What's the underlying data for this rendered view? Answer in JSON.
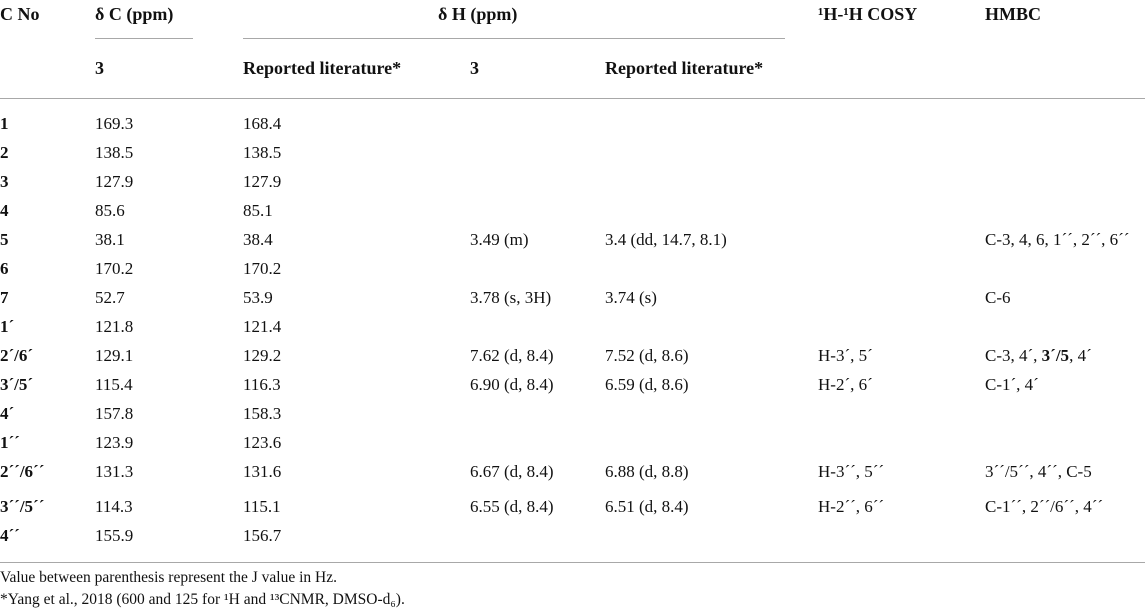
{
  "table": {
    "headers": {
      "c_no": "C No",
      "delta_c": "δ C (ppm)",
      "delta_h": "δ H (ppm)",
      "cosy": "¹H-¹H COSY",
      "hmbc": "HMBC",
      "sub_c_3": "3",
      "sub_c_lit": "Reported literature*",
      "sub_h_3": "3",
      "sub_h_lit": "Reported literature*"
    },
    "rows": [
      {
        "c_no": "1",
        "dc": "169.3",
        "dc_lit": "168.4"
      },
      {
        "c_no": "2",
        "dc": "138.5",
        "dc_lit": "138.5"
      },
      {
        "c_no": "3",
        "dc": "127.9",
        "dc_lit": "127.9"
      },
      {
        "c_no": "4",
        "dc": "85.6",
        "dc_lit": "85.1"
      },
      {
        "c_no": "5",
        "dc": "38.1",
        "dc_lit": "38.4",
        "dh": "3.49 (m)",
        "dh_lit": "3.4 (dd, 14.7, 8.1)",
        "hmbc": "C-3, 4, 6, 1´´, 2´´, 6´´"
      },
      {
        "c_no": "6",
        "dc": "170.2",
        "dc_lit": "170.2"
      },
      {
        "c_no": "7",
        "dc": "52.7",
        "dc_lit": "53.9",
        "dh": "3.78 (s, 3H)",
        "dh_lit": "3.74 (s)",
        "hmbc": "C-6"
      },
      {
        "c_no": "1´",
        "dc": "121.8",
        "dc_lit": "121.4"
      },
      {
        "c_no": "2´/6´",
        "dc": "129.1",
        "dc_lit": "129.2",
        "dh": "7.62 (d, 8.4)",
        "dh_lit": "7.52 (d, 8.6)",
        "cosy": "H-3´, 5´",
        "hmbc": [
          {
            "text": "C-3, 4´, "
          },
          {
            "text": "3´/5",
            "bold": true
          },
          {
            "text": ", 4´"
          }
        ]
      },
      {
        "c_no": "3´/5´",
        "dc": "115.4",
        "dc_lit": "116.3",
        "dh": "6.90 (d, 8.4)",
        "dh_lit": "6.59 (d, 8.6)",
        "cosy": "H-2´, 6´",
        "hmbc": "C-1´, 4´"
      },
      {
        "c_no": "4´",
        "dc": "157.8",
        "dc_lit": "158.3"
      },
      {
        "c_no": "1´´",
        "dc": "123.9",
        "dc_lit": "123.6"
      },
      {
        "c_no": "2´´/6´´",
        "dc": "131.3",
        "dc_lit": "131.6",
        "dh": "6.67 (d, 8.4)",
        "dh_lit": "6.88 (d, 8.8)",
        "cosy": "H-3´´, 5´´",
        "hmbc": "3´´/5´´, 4´´, C-5"
      },
      {
        "c_no": "3´´/5´´",
        "dc": "114.3",
        "dc_lit": "115.1",
        "dh": "6.55 (d, 8.4)",
        "dh_lit": "6.51 (d, 8.4)",
        "cosy": "H-2´´, 6´´",
        "hmbc": "C-1´´, 2´´/6´´, 4´´"
      },
      {
        "c_no": "4´´",
        "dc": "155.9",
        "dc_lit": "156.7"
      }
    ]
  },
  "footnotes": [
    "Value between parenthesis represent the J value in Hz.",
    "*Yang et al., 2018 (600 and 125 for ¹H and ¹³CNMR, DMSO-d₆)."
  ]
}
